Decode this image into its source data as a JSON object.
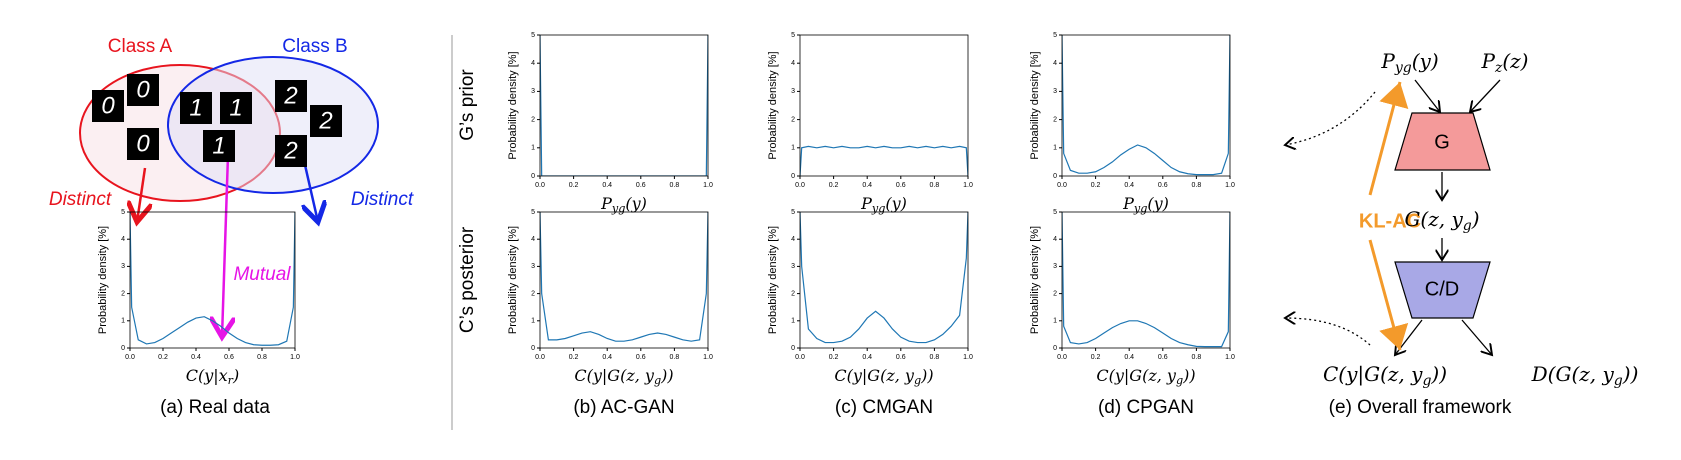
{
  "chart_data": [
    {
      "type": "line",
      "ylabel": "Probability density [%]",
      "xlabel": [
        "C(y|x",
        "r",
        ")"
      ],
      "color": "#1f77b4",
      "x": [
        0,
        0.01,
        0.05,
        0.1,
        0.15,
        0.2,
        0.25,
        0.3,
        0.35,
        0.4,
        0.45,
        0.5,
        0.55,
        0.6,
        0.65,
        0.7,
        0.75,
        0.8,
        0.85,
        0.9,
        0.95,
        0.99,
        1.0
      ],
      "values": [
        5,
        1.5,
        0.3,
        0.15,
        0.2,
        0.35,
        0.55,
        0.75,
        0.95,
        1.1,
        1.15,
        1.0,
        0.8,
        0.55,
        0.35,
        0.2,
        0.12,
        0.1,
        0.1,
        0.12,
        0.25,
        1.5,
        5
      ],
      "xlim": [
        0,
        1
      ],
      "ylim": [
        0,
        5
      ],
      "yticks": [
        0,
        1,
        2,
        3,
        4,
        5
      ],
      "xticks": [
        {
          "value": 0,
          "label": "0.0"
        },
        {
          "value": 0.2,
          "label": "0.2"
        },
        {
          "value": 0.4,
          "label": "0.4"
        },
        {
          "value": 0.6,
          "label": "0.6"
        },
        {
          "value": 0.8,
          "label": "0.8"
        },
        {
          "value": 1,
          "label": "1.0"
        }
      ]
    },
    {
      "type": "line",
      "ylabel": "Probability density [%]",
      "xlabel": [
        "P",
        "yg",
        "(y)"
      ],
      "color": "#1f77b4",
      "x": [
        0,
        0.01,
        0.05,
        0.1,
        0.15,
        0.2,
        0.25,
        0.3,
        0.35,
        0.4,
        0.45,
        0.5,
        0.55,
        0.6,
        0.65,
        0.7,
        0.75,
        0.8,
        0.85,
        0.9,
        0.95,
        0.99,
        1.0
      ],
      "values": [
        5,
        0,
        0,
        0,
        0,
        0,
        0,
        0,
        0,
        0,
        0,
        0,
        0,
        0,
        0,
        0,
        0,
        0,
        0,
        0,
        0,
        0,
        5
      ],
      "xlim": [
        0,
        1
      ],
      "ylim": [
        0,
        5
      ],
      "yticks": [
        0,
        1,
        2,
        3,
        4,
        5
      ],
      "xticks": [
        {
          "value": 0,
          "label": "0.0"
        },
        {
          "value": 0.2,
          "label": "0.2"
        },
        {
          "value": 0.4,
          "label": "0.4"
        },
        {
          "value": 0.6,
          "label": "0.6"
        },
        {
          "value": 0.8,
          "label": "0.8"
        },
        {
          "value": 1,
          "label": "1.0"
        }
      ]
    },
    {
      "type": "line",
      "ylabel": "Probability density [%]",
      "xlabel": [
        "P",
        "yg",
        "(y)"
      ],
      "color": "#1f77b4",
      "x": [
        0,
        0.01,
        0.05,
        0.1,
        0.15,
        0.2,
        0.25,
        0.3,
        0.35,
        0.4,
        0.45,
        0.5,
        0.55,
        0.6,
        0.65,
        0.7,
        0.75,
        0.8,
        0.85,
        0.9,
        0.95,
        0.99,
        1.0
      ],
      "values": [
        0,
        1.0,
        1.05,
        1.0,
        1.05,
        1.0,
        1.05,
        1.0,
        1.0,
        1.05,
        1.0,
        1.05,
        1.0,
        1.0,
        1.05,
        1.0,
        1.05,
        1.0,
        1.05,
        1.0,
        1.05,
        1.0,
        0
      ],
      "xlim": [
        0,
        1
      ],
      "ylim": [
        0,
        5
      ],
      "yticks": [
        0,
        1,
        2,
        3,
        4,
        5
      ],
      "xticks": [
        {
          "value": 0,
          "label": "0.0"
        },
        {
          "value": 0.2,
          "label": "0.2"
        },
        {
          "value": 0.4,
          "label": "0.4"
        },
        {
          "value": 0.6,
          "label": "0.6"
        },
        {
          "value": 0.8,
          "label": "0.8"
        },
        {
          "value": 1,
          "label": "1.0"
        }
      ]
    },
    {
      "type": "line",
      "ylabel": "Probability density [%]",
      "xlabel": [
        "P",
        "yg",
        "(y)"
      ],
      "color": "#1f77b4",
      "x": [
        0,
        0.01,
        0.05,
        0.1,
        0.15,
        0.2,
        0.25,
        0.3,
        0.35,
        0.4,
        0.45,
        0.5,
        0.55,
        0.6,
        0.65,
        0.7,
        0.75,
        0.8,
        0.85,
        0.9,
        0.95,
        0.99,
        1.0
      ],
      "values": [
        5,
        0.8,
        0.2,
        0.1,
        0.1,
        0.15,
        0.3,
        0.5,
        0.75,
        0.95,
        1.1,
        1.0,
        0.8,
        0.55,
        0.3,
        0.15,
        0.08,
        0.05,
        0.05,
        0.05,
        0.1,
        0.8,
        5
      ],
      "xlim": [
        0,
        1
      ],
      "ylim": [
        0,
        5
      ],
      "yticks": [
        0,
        1,
        2,
        3,
        4,
        5
      ],
      "xticks": [
        {
          "value": 0,
          "label": "0.0"
        },
        {
          "value": 0.2,
          "label": "0.2"
        },
        {
          "value": 0.4,
          "label": "0.4"
        },
        {
          "value": 0.6,
          "label": "0.6"
        },
        {
          "value": 0.8,
          "label": "0.8"
        },
        {
          "value": 1,
          "label": "1.0"
        }
      ]
    },
    {
      "type": "line",
      "ylabel": "Probability density [%]",
      "xlabel": [
        "C(y|G(z, y",
        "g",
        "))"
      ],
      "color": "#1f77b4",
      "x": [
        0,
        0.01,
        0.05,
        0.1,
        0.15,
        0.2,
        0.25,
        0.3,
        0.35,
        0.4,
        0.45,
        0.5,
        0.55,
        0.6,
        0.65,
        0.7,
        0.75,
        0.8,
        0.85,
        0.9,
        0.95,
        0.99,
        1.0
      ],
      "values": [
        5,
        2.0,
        0.3,
        0.3,
        0.35,
        0.45,
        0.55,
        0.6,
        0.5,
        0.35,
        0.25,
        0.25,
        0.3,
        0.4,
        0.5,
        0.55,
        0.5,
        0.4,
        0.3,
        0.25,
        0.3,
        2.0,
        5
      ],
      "xlim": [
        0,
        1
      ],
      "ylim": [
        0,
        5
      ],
      "yticks": [
        0,
        1,
        2,
        3,
        4,
        5
      ],
      "xticks": [
        {
          "value": 0,
          "label": "0.0"
        },
        {
          "value": 0.2,
          "label": "0.2"
        },
        {
          "value": 0.4,
          "label": "0.4"
        },
        {
          "value": 0.6,
          "label": "0.6"
        },
        {
          "value": 0.8,
          "label": "0.8"
        },
        {
          "value": 1,
          "label": "1.0"
        }
      ]
    },
    {
      "type": "line",
      "ylabel": "Probability density [%]",
      "xlabel": [
        "C(y|G(z, y",
        "g",
        "))"
      ],
      "color": "#1f77b4",
      "x": [
        0,
        0.01,
        0.05,
        0.1,
        0.15,
        0.2,
        0.25,
        0.3,
        0.35,
        0.4,
        0.45,
        0.5,
        0.55,
        0.6,
        0.65,
        0.7,
        0.75,
        0.8,
        0.85,
        0.9,
        0.95,
        0.99,
        1.0
      ],
      "values": [
        5,
        3.0,
        0.7,
        0.35,
        0.2,
        0.2,
        0.25,
        0.4,
        0.7,
        1.1,
        1.35,
        1.1,
        0.7,
        0.4,
        0.25,
        0.2,
        0.2,
        0.3,
        0.5,
        0.8,
        1.2,
        3.3,
        5
      ],
      "xlim": [
        0,
        1
      ],
      "ylim": [
        0,
        5
      ],
      "yticks": [
        0,
        1,
        2,
        3,
        4,
        5
      ],
      "xticks": [
        {
          "value": 0,
          "label": "0.0"
        },
        {
          "value": 0.2,
          "label": "0.2"
        },
        {
          "value": 0.4,
          "label": "0.4"
        },
        {
          "value": 0.6,
          "label": "0.6"
        },
        {
          "value": 0.8,
          "label": "0.8"
        },
        {
          "value": 1,
          "label": "1.0"
        }
      ]
    },
    {
      "type": "line",
      "ylabel": "Probability density [%]",
      "xlabel": [
        "C(y|G(z, y",
        "g",
        "))"
      ],
      "color": "#1f77b4",
      "x": [
        0,
        0.01,
        0.05,
        0.1,
        0.15,
        0.2,
        0.25,
        0.3,
        0.35,
        0.4,
        0.45,
        0.5,
        0.55,
        0.6,
        0.65,
        0.7,
        0.75,
        0.8,
        0.85,
        0.9,
        0.95,
        0.99,
        1.0
      ],
      "values": [
        5,
        0.8,
        0.2,
        0.15,
        0.2,
        0.35,
        0.55,
        0.75,
        0.9,
        1.0,
        1.0,
        0.9,
        0.75,
        0.55,
        0.35,
        0.2,
        0.12,
        0.06,
        0.05,
        0.05,
        0.05,
        0.6,
        5
      ],
      "xlim": [
        0,
        1
      ],
      "ylim": [
        0,
        5
      ],
      "yticks": [
        0,
        1,
        2,
        3,
        4,
        5
      ],
      "xticks": [
        {
          "value": 0,
          "label": "0.0"
        },
        {
          "value": 0.2,
          "label": "0.2"
        },
        {
          "value": 0.4,
          "label": "0.4"
        },
        {
          "value": 0.6,
          "label": "0.6"
        },
        {
          "value": 0.8,
          "label": "0.8"
        },
        {
          "value": 1,
          "label": "1.0"
        }
      ]
    }
  ],
  "captions": [
    "(a) Real data",
    "(b) AC-GAN",
    "(c) CMGAN",
    "(d) CPGAN",
    "(e) Overall framework"
  ],
  "row_labels": [
    "G’s prior",
    "C’s posterior"
  ],
  "venn": {
    "class_a": "Class A",
    "class_b": "Class B",
    "distinct": "Distinct",
    "mutual": "Mutual",
    "digits": [
      "0",
      "0",
      "0",
      "1",
      "1",
      "1",
      "2",
      "2",
      "2"
    ]
  },
  "framework": {
    "prior_y": [
      "P",
      "yg",
      "(y)"
    ],
    "prior_z": [
      "P",
      "z",
      "(z)"
    ],
    "generator": "G",
    "gen_out": [
      "G(z, y",
      "g",
      ")"
    ],
    "discriminator": "C/D",
    "class_out": [
      "C(y|G(z, y",
      "g",
      "))"
    ],
    "disc_out": [
      "D(G(z, y",
      "g",
      "))"
    ],
    "loss": "KL-AC"
  }
}
